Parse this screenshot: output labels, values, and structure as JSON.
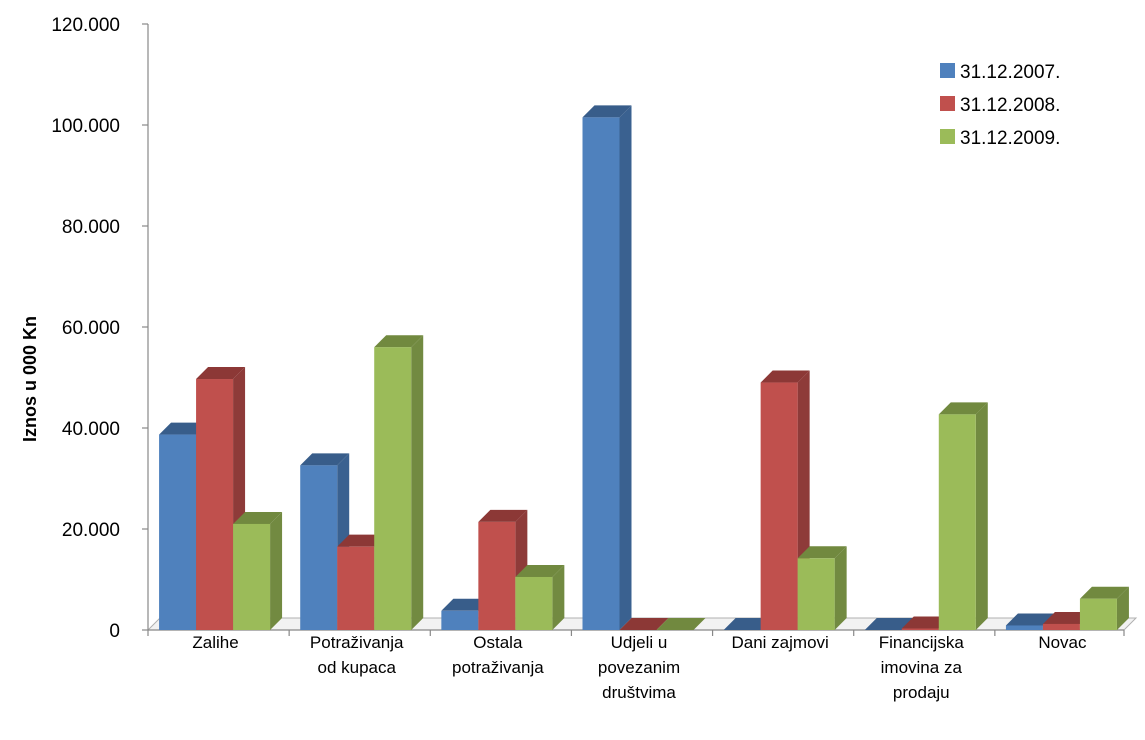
{
  "chart_data": {
    "type": "bar",
    "title": "",
    "ylabel": "Iznos u 000 Kn",
    "xlabel": "",
    "ylim": [
      0,
      120000
    ],
    "yticks": [
      0,
      20000,
      40000,
      60000,
      80000,
      100000,
      120000
    ],
    "ytick_labels": [
      "0",
      "20.000",
      "40.000",
      "60.000",
      "80.000",
      "100.000",
      "120.000"
    ],
    "categories": [
      [
        "Zalihe"
      ],
      [
        "Potraživanja",
        "od kupaca"
      ],
      [
        "Ostala",
        "potraživanja"
      ],
      [
        "Udjeli u",
        "povezanim",
        "društvima"
      ],
      [
        "Dani zajmovi"
      ],
      [
        "Financijska",
        "imovina za",
        "prodaju"
      ],
      [
        "Novac"
      ]
    ],
    "series": [
      {
        "name": "31.12.2007.",
        "color": "#4F81BD",
        "side": "#3A6190",
        "top": "#385D8A",
        "values": [
          38700,
          32600,
          3800,
          101500,
          0,
          0,
          900
        ]
      },
      {
        "name": "31.12.2008.",
        "color": "#C0504D",
        "side": "#8E3B39",
        "top": "#8C3836",
        "values": [
          49700,
          16500,
          21400,
          0,
          49000,
          300,
          1200
        ]
      },
      {
        "name": "31.12.2009.",
        "color": "#9BBB59",
        "side": "#728A41",
        "top": "#71893F",
        "values": [
          21000,
          56000,
          10500,
          0,
          14200,
          42700,
          6200
        ]
      }
    ],
    "legend_position": "top-right",
    "grid": false
  }
}
